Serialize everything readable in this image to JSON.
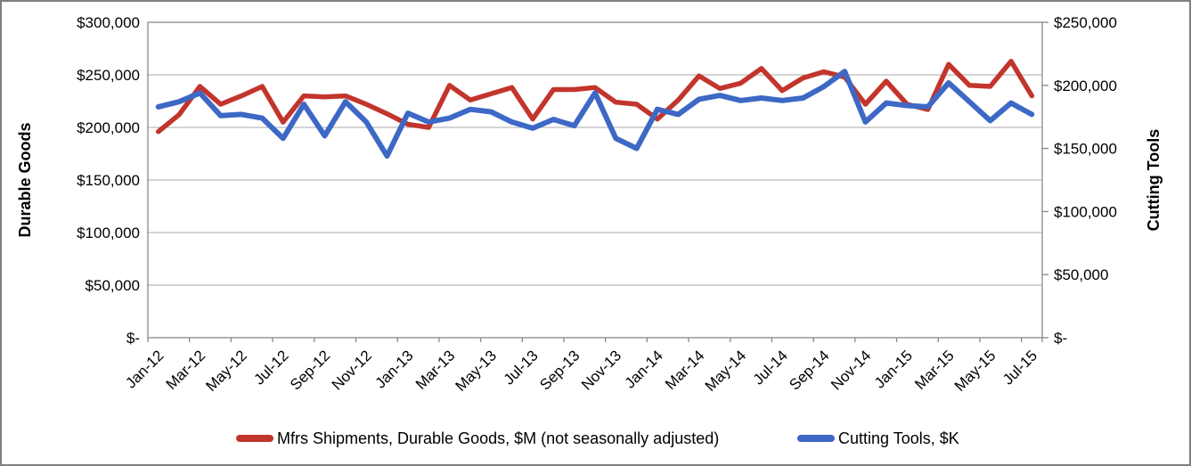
{
  "chart_data": {
    "type": "line",
    "title": "",
    "x": [
      "Jan-12",
      "Feb-12",
      "Mar-12",
      "Apr-12",
      "May-12",
      "Jun-12",
      "Jul-12",
      "Aug-12",
      "Sep-12",
      "Oct-12",
      "Nov-12",
      "Dec-12",
      "Jan-13",
      "Feb-13",
      "Mar-13",
      "Apr-13",
      "May-13",
      "Jun-13",
      "Jul-13",
      "Aug-13",
      "Sep-13",
      "Oct-13",
      "Nov-13",
      "Dec-13",
      "Jan-14",
      "Feb-14",
      "Mar-14",
      "Apr-14",
      "May-14",
      "Jun-14",
      "Jul-14",
      "Aug-14",
      "Sep-14",
      "Oct-14",
      "Nov-14",
      "Dec-14",
      "Jan-15",
      "Feb-15",
      "Mar-15",
      "Apr-15",
      "May-15",
      "Jun-15",
      "Jul-15"
    ],
    "x_label_every": 2,
    "left_axis": {
      "title": "Durable Goods",
      "min": 0,
      "max": 300000,
      "tick_step": 50000,
      "tick_labels": [
        "$-",
        "$50,000",
        "$100,000",
        "$150,000",
        "$200,000",
        "$250,000",
        "$300,000"
      ]
    },
    "right_axis": {
      "title": "Cutting Tools",
      "min": 0,
      "max": 250000,
      "tick_step": 50000,
      "tick_labels": [
        "$-",
        "$50,000",
        "$100,000",
        "$150,000",
        "$200,000",
        "$250,000"
      ]
    },
    "series": [
      {
        "name": "Mfrs Shipments, Durable Goods, $M (not seasonally adjusted)",
        "axis": "left",
        "color": "#C2352C",
        "values": [
          196000,
          212000,
          239000,
          222000,
          230000,
          239000,
          205000,
          230000,
          229000,
          230000,
          222000,
          213000,
          203000,
          200000,
          240000,
          226000,
          232000,
          238000,
          208000,
          236000,
          236000,
          238000,
          224000,
          222000,
          208000,
          226000,
          249000,
          237000,
          242000,
          256000,
          235000,
          247000,
          253000,
          248000,
          222000,
          244000,
          222000,
          217000,
          260000,
          240000,
          239000,
          263000,
          230000
        ]
      },
      {
        "name": "Cutting Tools, $K",
        "axis": "right",
        "color": "#3D68C5",
        "values": [
          183000,
          187000,
          194000,
          176000,
          177000,
          174000,
          158000,
          185000,
          160000,
          187000,
          171000,
          144000,
          178000,
          171000,
          174000,
          181000,
          179000,
          171000,
          166000,
          173000,
          168000,
          194000,
          158000,
          150000,
          181000,
          177000,
          189000,
          192000,
          188000,
          190000,
          188000,
          190000,
          199000,
          211000,
          171000,
          186000,
          184000,
          183000,
          202000,
          187000,
          172000,
          186000,
          177000
        ]
      }
    ],
    "grid": true,
    "legend_position": "bottom"
  },
  "colors": {
    "grid": "#AAAAAA",
    "plot_border": "#888888",
    "outer_border": "#7F7F7F",
    "text": "#000000"
  }
}
